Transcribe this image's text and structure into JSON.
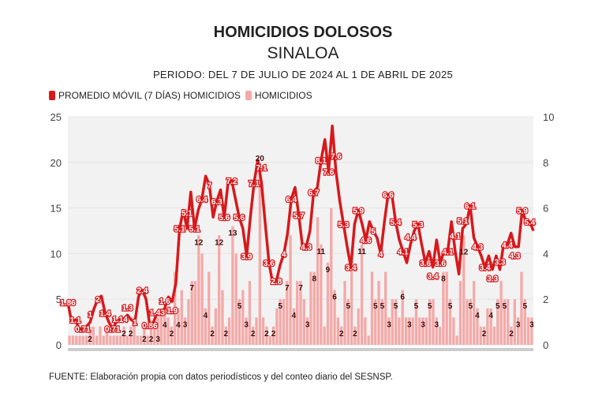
{
  "chart_data": {
    "type": "bar+line",
    "title": "HOMICIDIOS DOLOSOS",
    "subtitle": "SINALOA",
    "period": "PERIODO: DEL 7 DE JULIO DE 2024 AL 1 DE ABRIL DE 2025",
    "source": "FUENTE: Elaboración propia con datos periodísticos y del conteo diario del SESNSP.",
    "legend": {
      "placement": "top-left",
      "line_label": "PROMEDIO MÓVIL (7 DÍAS) HOMICIDIOS",
      "bar_label": "HOMICIDIOS"
    },
    "left_axis": {
      "ylim": [
        0,
        25
      ],
      "ticks": [
        "0",
        "5",
        "10",
        "15",
        "20",
        "25"
      ]
    },
    "right_axis": {
      "ylim": [
        0,
        10
      ],
      "ticks": [
        "0",
        "2",
        "4",
        "6",
        "8",
        "10"
      ]
    },
    "grid": true,
    "colors": {
      "line": "#d7191c",
      "bars": "#f4a9a8",
      "background": "#f2f2f2"
    },
    "series": [
      {
        "name": "HOMICIDIOS",
        "axis": "left",
        "type": "bar",
        "values": [
          1,
          1,
          1,
          1,
          1,
          1,
          2,
          2,
          1,
          2,
          1,
          2,
          1,
          1,
          1,
          1,
          2,
          1,
          2,
          3,
          1,
          1,
          2,
          1,
          2,
          2,
          3,
          4,
          4,
          3,
          2,
          8,
          4,
          6,
          3,
          5,
          7,
          7,
          12,
          10,
          4,
          8,
          2,
          4,
          12,
          6,
          2,
          3,
          13,
          10,
          5,
          6,
          3,
          7,
          2,
          3,
          20,
          3,
          2,
          1,
          2,
          4,
          5,
          5,
          7,
          12,
          4,
          7,
          7,
          5,
          3,
          8,
          8,
          14,
          11,
          2,
          9,
          15,
          6,
          3,
          2,
          7,
          5,
          8,
          2,
          4,
          11,
          3,
          1,
          8,
          5,
          7,
          5,
          8,
          3,
          5,
          5,
          3,
          6,
          3,
          3,
          3,
          5,
          3,
          3,
          3,
          5,
          5,
          3,
          2,
          8,
          8,
          5,
          3,
          1,
          7,
          12,
          5,
          5,
          7,
          4,
          2,
          2,
          4,
          4,
          2,
          5,
          7,
          5,
          5,
          2,
          5,
          3,
          8,
          5,
          3,
          3
        ]
      },
      {
        "name": "PROMEDIO MÓVIL (7 DÍAS) HOMICIDIOS",
        "axis": "right",
        "type": "line",
        "values": [
          1.86,
          1,
          1.1,
          0.71,
          0.71,
          0.8,
          1,
          1.57,
          2,
          2.14,
          1.4,
          1,
          0.71,
          1,
          1.14,
          1.14,
          1.3,
          1.1,
          1,
          2.14,
          2.4,
          2.0,
          0.86,
          1,
          1.43,
          1.43,
          1.6,
          2.1,
          1.9,
          2.7,
          5.1,
          5.9,
          5.1,
          6.7,
          5.1,
          5.9,
          6.4,
          7.4,
          7.0,
          5.6,
          6.3,
          6.8,
          5.6,
          7.1,
          7.2,
          6.4,
          5.6,
          5.1,
          3.9,
          5.6,
          7.1,
          8.1,
          7.1,
          5.3,
          3.6,
          2.7,
          2.8,
          3.5,
          4,
          4.9,
          6.4,
          6.9,
          5.7,
          4.3,
          4.3,
          5,
          6.7,
          6.9,
          8.1,
          9,
          7.6,
          9.6,
          7.6,
          6.3,
          5.3,
          4.3,
          3.4,
          5.3,
          5.9,
          5.3,
          4.6,
          5.4,
          5.0,
          4.7,
          4,
          5.4,
          6.6,
          6.6,
          5.4,
          4.6,
          4.1,
          3.6,
          4.4,
          5,
          5.3,
          4.4,
          3.6,
          4.1,
          3.4,
          4.6,
          3.6,
          4.1,
          4.1,
          5.4,
          4.1,
          3.1,
          5.1,
          5.3,
          6.1,
          4.7,
          4.3,
          3.9,
          3.4,
          3.9,
          3.3,
          3.9,
          3.3,
          4.4,
          4.4,
          4.9,
          4.3,
          4.3,
          5.9,
          5.4,
          5.4,
          5
        ]
      }
    ]
  }
}
